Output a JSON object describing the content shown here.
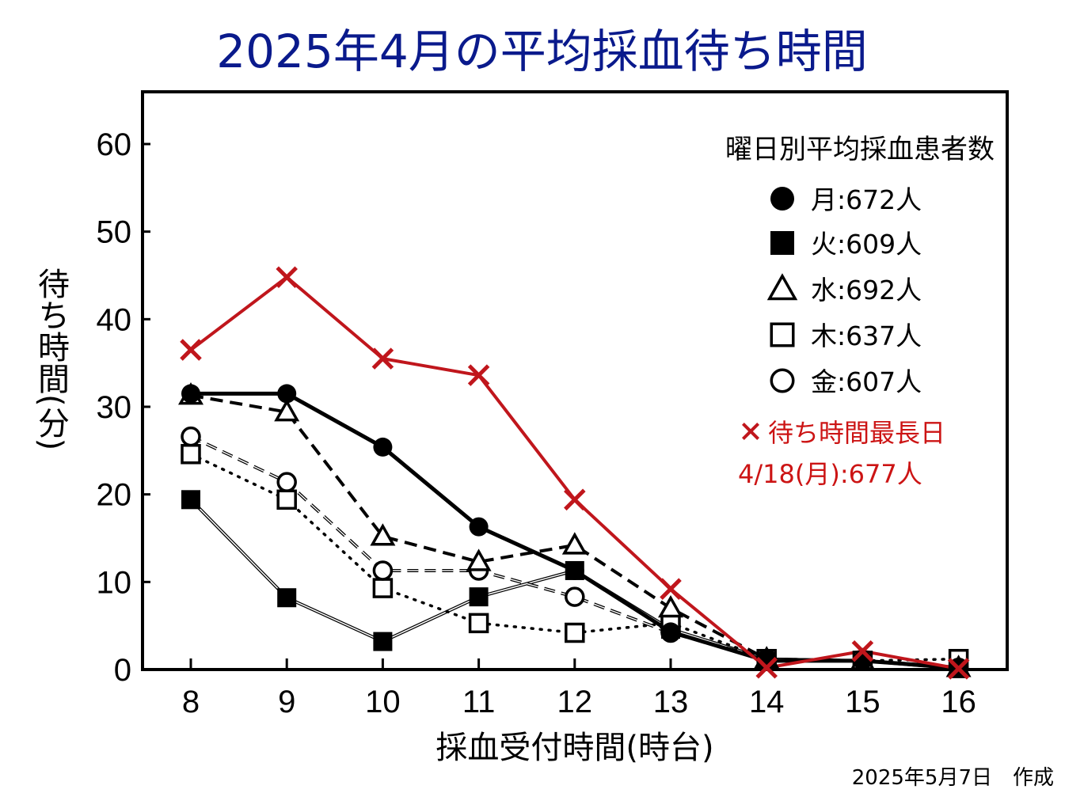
{
  "title": "2025年4月の平均採血待ち時間",
  "footer": "2025年5月7日　作成",
  "chart_data": {
    "type": "line",
    "xlabel": "採血受付時間(時台)",
    "ylabel": "待ち時間(分)",
    "x": [
      8,
      9,
      10,
      11,
      12,
      13,
      14,
      15,
      16
    ],
    "ylim": [
      0,
      65
    ],
    "yticks": [
      0,
      10,
      20,
      30,
      40,
      50,
      60
    ],
    "grid": false,
    "legend_title": "曜日別平均採血患者数",
    "legend_position": "top-right",
    "series": [
      {
        "name": "月:672人",
        "marker": "filled-circle",
        "color": "#000000",
        "style": "solid-thick",
        "values": [
          31.5,
          31.5,
          25.4,
          16.3,
          11.3,
          4.3,
          1.0,
          1.0,
          0.2
        ]
      },
      {
        "name": "火:609人",
        "marker": "filled-square",
        "color": "#000000",
        "style": "double-thin",
        "values": [
          19.4,
          8.2,
          3.2,
          8.3,
          11.3,
          4.6,
          1.2,
          1.0,
          0.1
        ]
      },
      {
        "name": "水:692人",
        "marker": "open-triangle",
        "color": "#000000",
        "style": "dashed-thick",
        "values": [
          31.3,
          29.4,
          15.2,
          12.3,
          14.2,
          7.0,
          1.2,
          1.0,
          0.2
        ]
      },
      {
        "name": "木:637人",
        "marker": "open-square",
        "color": "#000000",
        "style": "dotted",
        "values": [
          24.6,
          19.4,
          9.3,
          5.3,
          4.2,
          5.3,
          1.2,
          1.0,
          1.2
        ]
      },
      {
        "name": "金:607人",
        "marker": "open-circle",
        "color": "#000000",
        "style": "dashed-thin",
        "values": [
          26.6,
          21.4,
          11.3,
          11.3,
          8.3,
          4.2,
          1.2,
          1.0,
          0.2
        ]
      },
      {
        "name": "待ち時間最長日",
        "marker": "x",
        "color": "#c0161c",
        "style": "solid",
        "values": [
          36.5,
          44.8,
          35.5,
          33.6,
          19.4,
          9.2,
          0.2,
          2.1,
          0.1
        ]
      }
    ],
    "annotation": "4/18(月):677人"
  }
}
